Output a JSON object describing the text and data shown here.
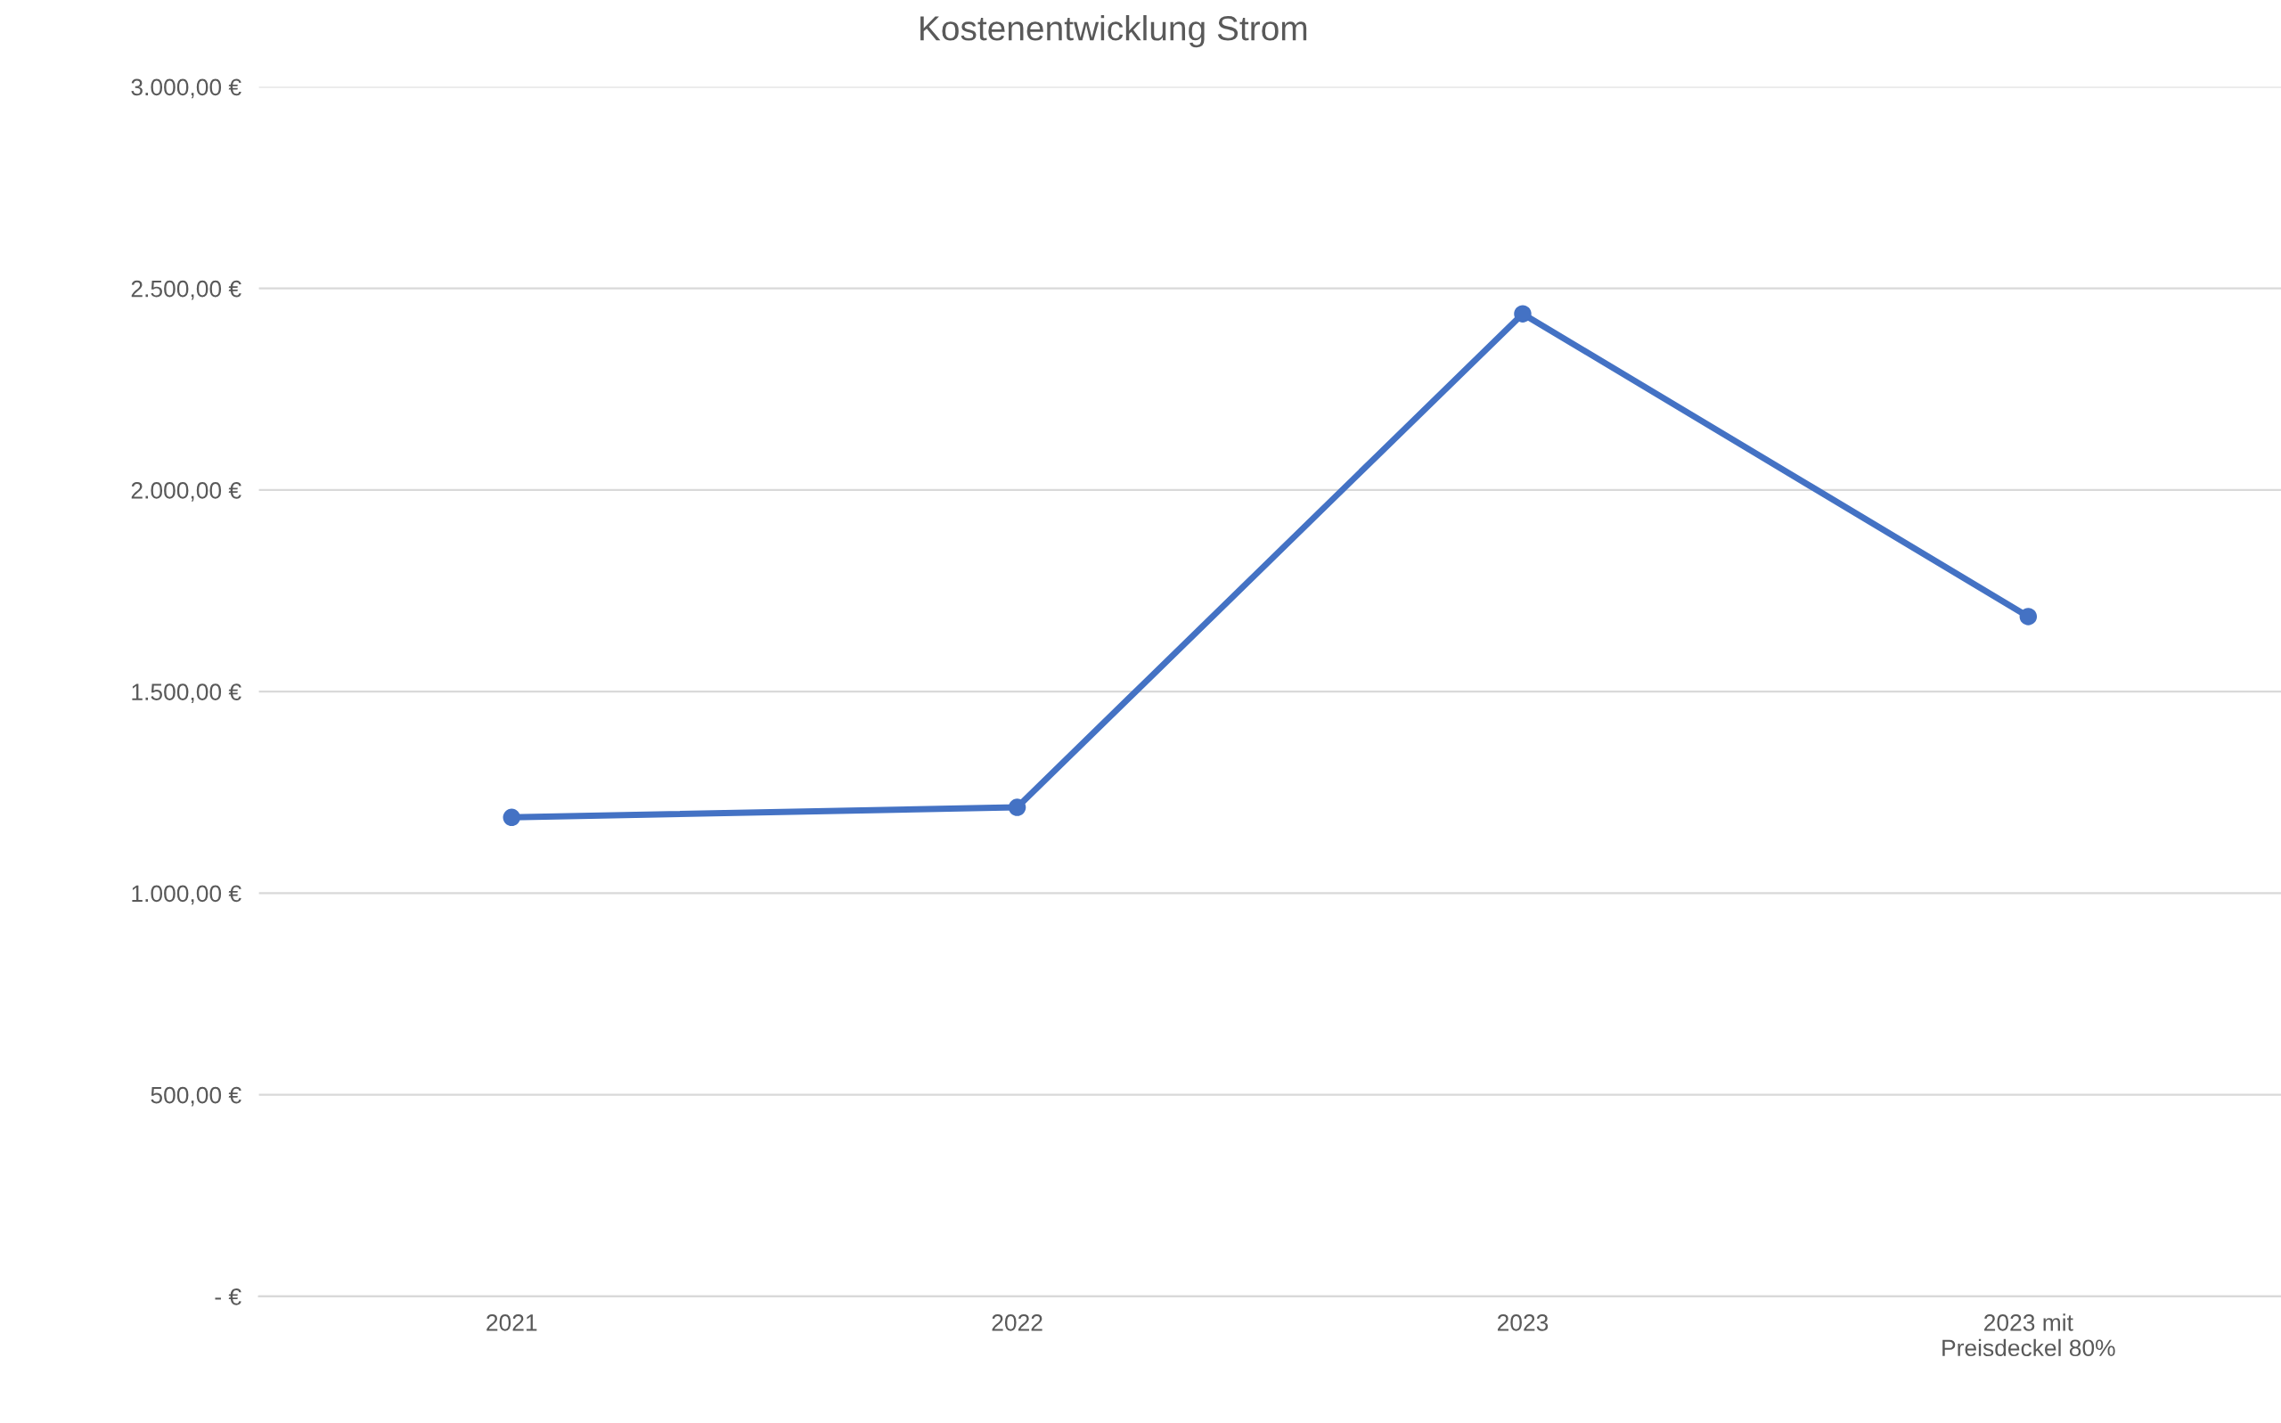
{
  "chart_data": {
    "type": "line",
    "title": "Kostenentwicklung Strom",
    "categories": [
      "2021",
      "2022",
      "2023",
      "2023 mit\nPreisdeckel 80%"
    ],
    "series": [
      {
        "color": "#4472c4",
        "values": [
          1188,
          1213,
          2437,
          1686
        ]
      }
    ],
    "ylim": [
      0,
      3000
    ],
    "yticks": [
      {
        "value": 0,
        "label": "- €"
      },
      {
        "value": 500,
        "label": "500,00 €"
      },
      {
        "value": 1000,
        "label": "1.000,00 €"
      },
      {
        "value": 1500,
        "label": "1.500,00 €"
      },
      {
        "value": 2000,
        "label": "2.000,00 €"
      },
      {
        "value": 2500,
        "label": "2.500,00 €"
      },
      {
        "value": 3000,
        "label": "3.000,00 €"
      }
    ],
    "grid": "y",
    "marker": "circle",
    "line_style": "solid"
  }
}
